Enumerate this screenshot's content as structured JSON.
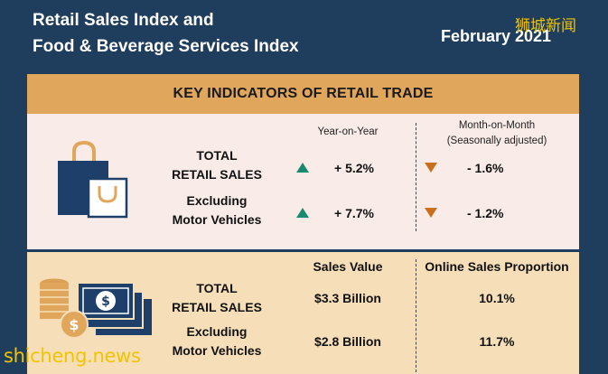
{
  "header": {
    "title_line1": "Retail Sales Index and",
    "title_line2": "Food & Beverage Services Index",
    "period": "February 2021"
  },
  "watermarks": {
    "top_right": "狮城新闻",
    "bottom_left": "shicheng.news"
  },
  "key_indicators": {
    "heading": "KEY INDICATORS OF RETAIL TRADE",
    "col_yoy": "Year-on-Year",
    "col_mom_line1": "Month-on-Month",
    "col_mom_line2": "(Seasonally adjusted)",
    "rows": [
      {
        "label_line1": "TOTAL",
        "label_line2": "RETAIL SALES",
        "yoy": "+ 5.2%",
        "yoy_dir": "up",
        "mom": "- 1.6%",
        "mom_dir": "down"
      },
      {
        "label_line1": "Excluding",
        "label_line2": "Motor Vehicles",
        "yoy": "+ 7.7%",
        "yoy_dir": "up",
        "mom": "- 1.2%",
        "mom_dir": "down"
      }
    ]
  },
  "sales": {
    "col_value": "Sales Value",
    "col_online": "Online Sales Proportion",
    "rows": [
      {
        "label_line1": "TOTAL",
        "label_line2": "RETAIL SALES",
        "value": "$3.3 Billion",
        "online": "10.1%"
      },
      {
        "label_line1": "Excluding",
        "label_line2": "Motor Vehicles",
        "value": "$2.8 Billion",
        "online": "11.7%"
      }
    ]
  },
  "colors": {
    "background": "#1f3d5c",
    "bar": "#e0a65c",
    "up": "#1a8a6e",
    "down": "#c9701e",
    "watermark": "#f2c400"
  },
  "icons": {
    "panel1": "shopping-bags-icon",
    "panel2": "money-coins-icon"
  }
}
